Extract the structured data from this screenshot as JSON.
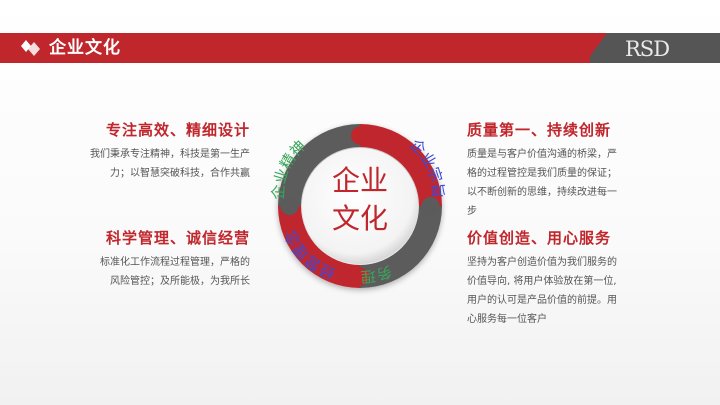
{
  "header": {
    "title": "企业文化",
    "logo": "RSD"
  },
  "center": {
    "line1": "企业",
    "line2": "文化"
  },
  "ring_labels": {
    "tl": "企业精神",
    "tr": "企业宗旨",
    "br": "服务理念",
    "bl": "经营理念"
  },
  "blocks": {
    "top_left": {
      "heading": "专注高效、精细设计",
      "lines": [
        "我们秉承专注精神，科技是第一生产",
        "力；以智慧突破科技，合作共赢"
      ]
    },
    "bottom_left": {
      "heading": "科学管理、诚信经营",
      "lines": [
        "标准化工作流程过程管理，严格的",
        "风险管控；及所能极，为我所长"
      ]
    },
    "top_right": {
      "heading": "质量第一、持续创新",
      "lines": [
        "质量是与客户价值沟通的桥梁，严",
        "格的过程管控是我们质量的保证；",
        "以不断创新的思维，持续改进每一",
        "步"
      ]
    },
    "bottom_right": {
      "heading": "价值创造、用心服务",
      "lines": [
        "坚持为客户创造价值为我们服务的",
        "价值导向, 将用户体验放在第一位,",
        "用户的认可是产品价值的前提。用",
        "心服务每一位客户"
      ]
    }
  },
  "colors": {
    "accent": "#c0272d",
    "dark": "#555555",
    "ring_gray": "#5b5b5b",
    "label_green": "#3aa55a",
    "label_blue": "#3b4bd8"
  }
}
